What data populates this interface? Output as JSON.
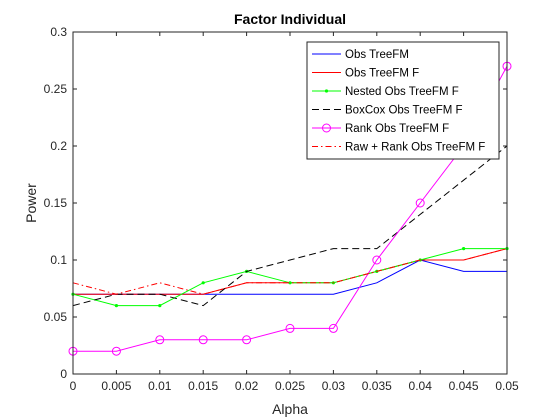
{
  "chart_data": {
    "type": "line",
    "title": "Factor Individual",
    "xlabel": "Alpha",
    "ylabel": "Power",
    "xlim": [
      0,
      0.05
    ],
    "ylim": [
      0,
      0.3
    ],
    "xticks": [
      "0",
      "0.005",
      "0.01",
      "0.015",
      "0.02",
      "0.025",
      "0.03",
      "0.035",
      "0.04",
      "0.045",
      "0.05"
    ],
    "yticks": [
      "0",
      "0.05",
      "0.1",
      "0.15",
      "0.2",
      "0.25",
      "0.3"
    ],
    "grid": false,
    "legend_position": "top-right",
    "x": [
      0,
      0.005,
      0.01,
      0.015,
      0.02,
      0.025,
      0.03,
      0.035,
      0.04,
      0.045,
      0.05
    ],
    "series": [
      {
        "name": "Obs TreeFM",
        "color": "#0000ff",
        "dash": "solid",
        "marker": "none",
        "values": [
          0.07,
          0.07,
          0.07,
          0.07,
          0.07,
          0.07,
          0.07,
          0.08,
          0.1,
          0.09,
          0.09
        ]
      },
      {
        "name": "Obs TreeFM F",
        "color": "#ff0000",
        "dash": "solid",
        "marker": "none",
        "values": [
          0.07,
          0.07,
          0.07,
          0.07,
          0.08,
          0.08,
          0.08,
          0.09,
          0.1,
          0.1,
          0.11
        ]
      },
      {
        "name": "Nested Obs TreeFM F",
        "color": "#00ff00",
        "dash": "solid",
        "marker": "point",
        "values": [
          0.07,
          0.06,
          0.06,
          0.08,
          0.09,
          0.08,
          0.08,
          0.09,
          0.1,
          0.11,
          0.11
        ]
      },
      {
        "name": "BoxCox Obs TreeFM F",
        "color": "#000000",
        "dash": "dashed",
        "marker": "none",
        "values": [
          0.06,
          0.07,
          0.07,
          0.06,
          0.09,
          0.1,
          0.11,
          0.11,
          0.14,
          0.17,
          0.2
        ]
      },
      {
        "name": "Rank Obs TreeFM F",
        "color": "#ff00ff",
        "dash": "solid",
        "marker": "circle",
        "values": [
          0.02,
          0.02,
          0.03,
          0.03,
          0.03,
          0.04,
          0.04,
          0.1,
          0.15,
          0.2,
          0.27
        ]
      },
      {
        "name": "Raw + Rank Obs TreeFM F",
        "color": "#ff0000",
        "dash": "dashdot",
        "marker": "none",
        "values": [
          0.08,
          0.07,
          0.08,
          0.07,
          0.08,
          0.08,
          0.08,
          0.09,
          0.1,
          0.1,
          0.11
        ]
      }
    ]
  }
}
